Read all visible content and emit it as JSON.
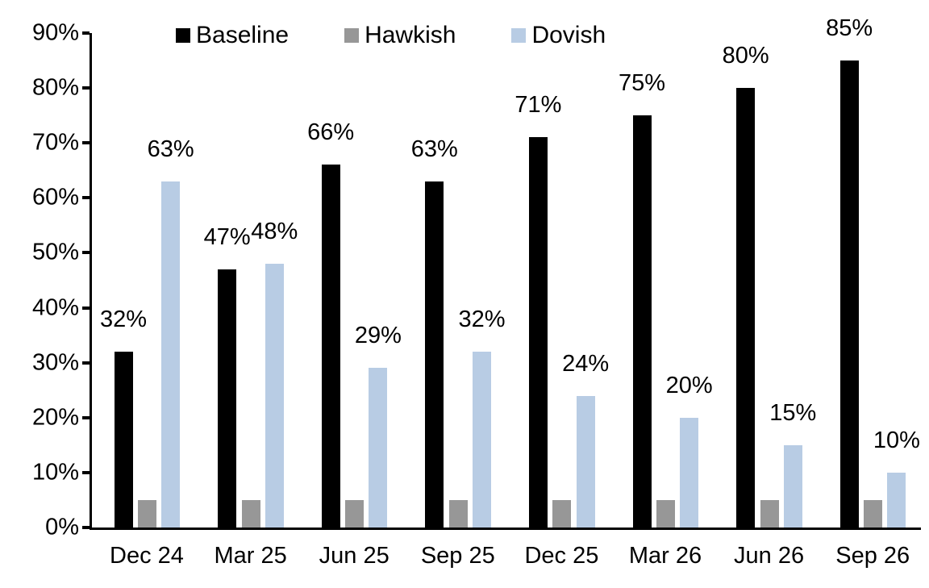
{
  "chart_data": {
    "type": "bar",
    "title": "",
    "xlabel": "",
    "ylabel": "",
    "categories": [
      "Dec 24",
      "Mar 25",
      "Jun 25",
      "Sep 25",
      "Dec 25",
      "Mar 26",
      "Jun 26",
      "Sep 26"
    ],
    "series": [
      {
        "name": "Baseline",
        "color": "#000000",
        "values": [
          32,
          47,
          66,
          63,
          71,
          75,
          80,
          85
        ],
        "labels_shown": true
      },
      {
        "name": "Hawkish",
        "color": "#979797",
        "values": [
          5,
          5,
          5,
          5,
          5,
          5,
          5,
          5
        ],
        "labels_shown": false
      },
      {
        "name": "Dovish",
        "color": "#B8CCE4",
        "values": [
          63,
          48,
          29,
          32,
          24,
          20,
          15,
          10
        ],
        "labels_shown": true
      }
    ],
    "ylim": [
      0,
      90
    ],
    "ytick_step": 10,
    "ytick_labels": [
      "0%",
      "10%",
      "20%",
      "30%",
      "40%",
      "50%",
      "60%",
      "70%",
      "80%",
      "90%"
    ],
    "data_label_suffix": "%",
    "legend_position": "top",
    "grid": false,
    "axis_color": "#000000",
    "background_color": "#ffffff"
  }
}
